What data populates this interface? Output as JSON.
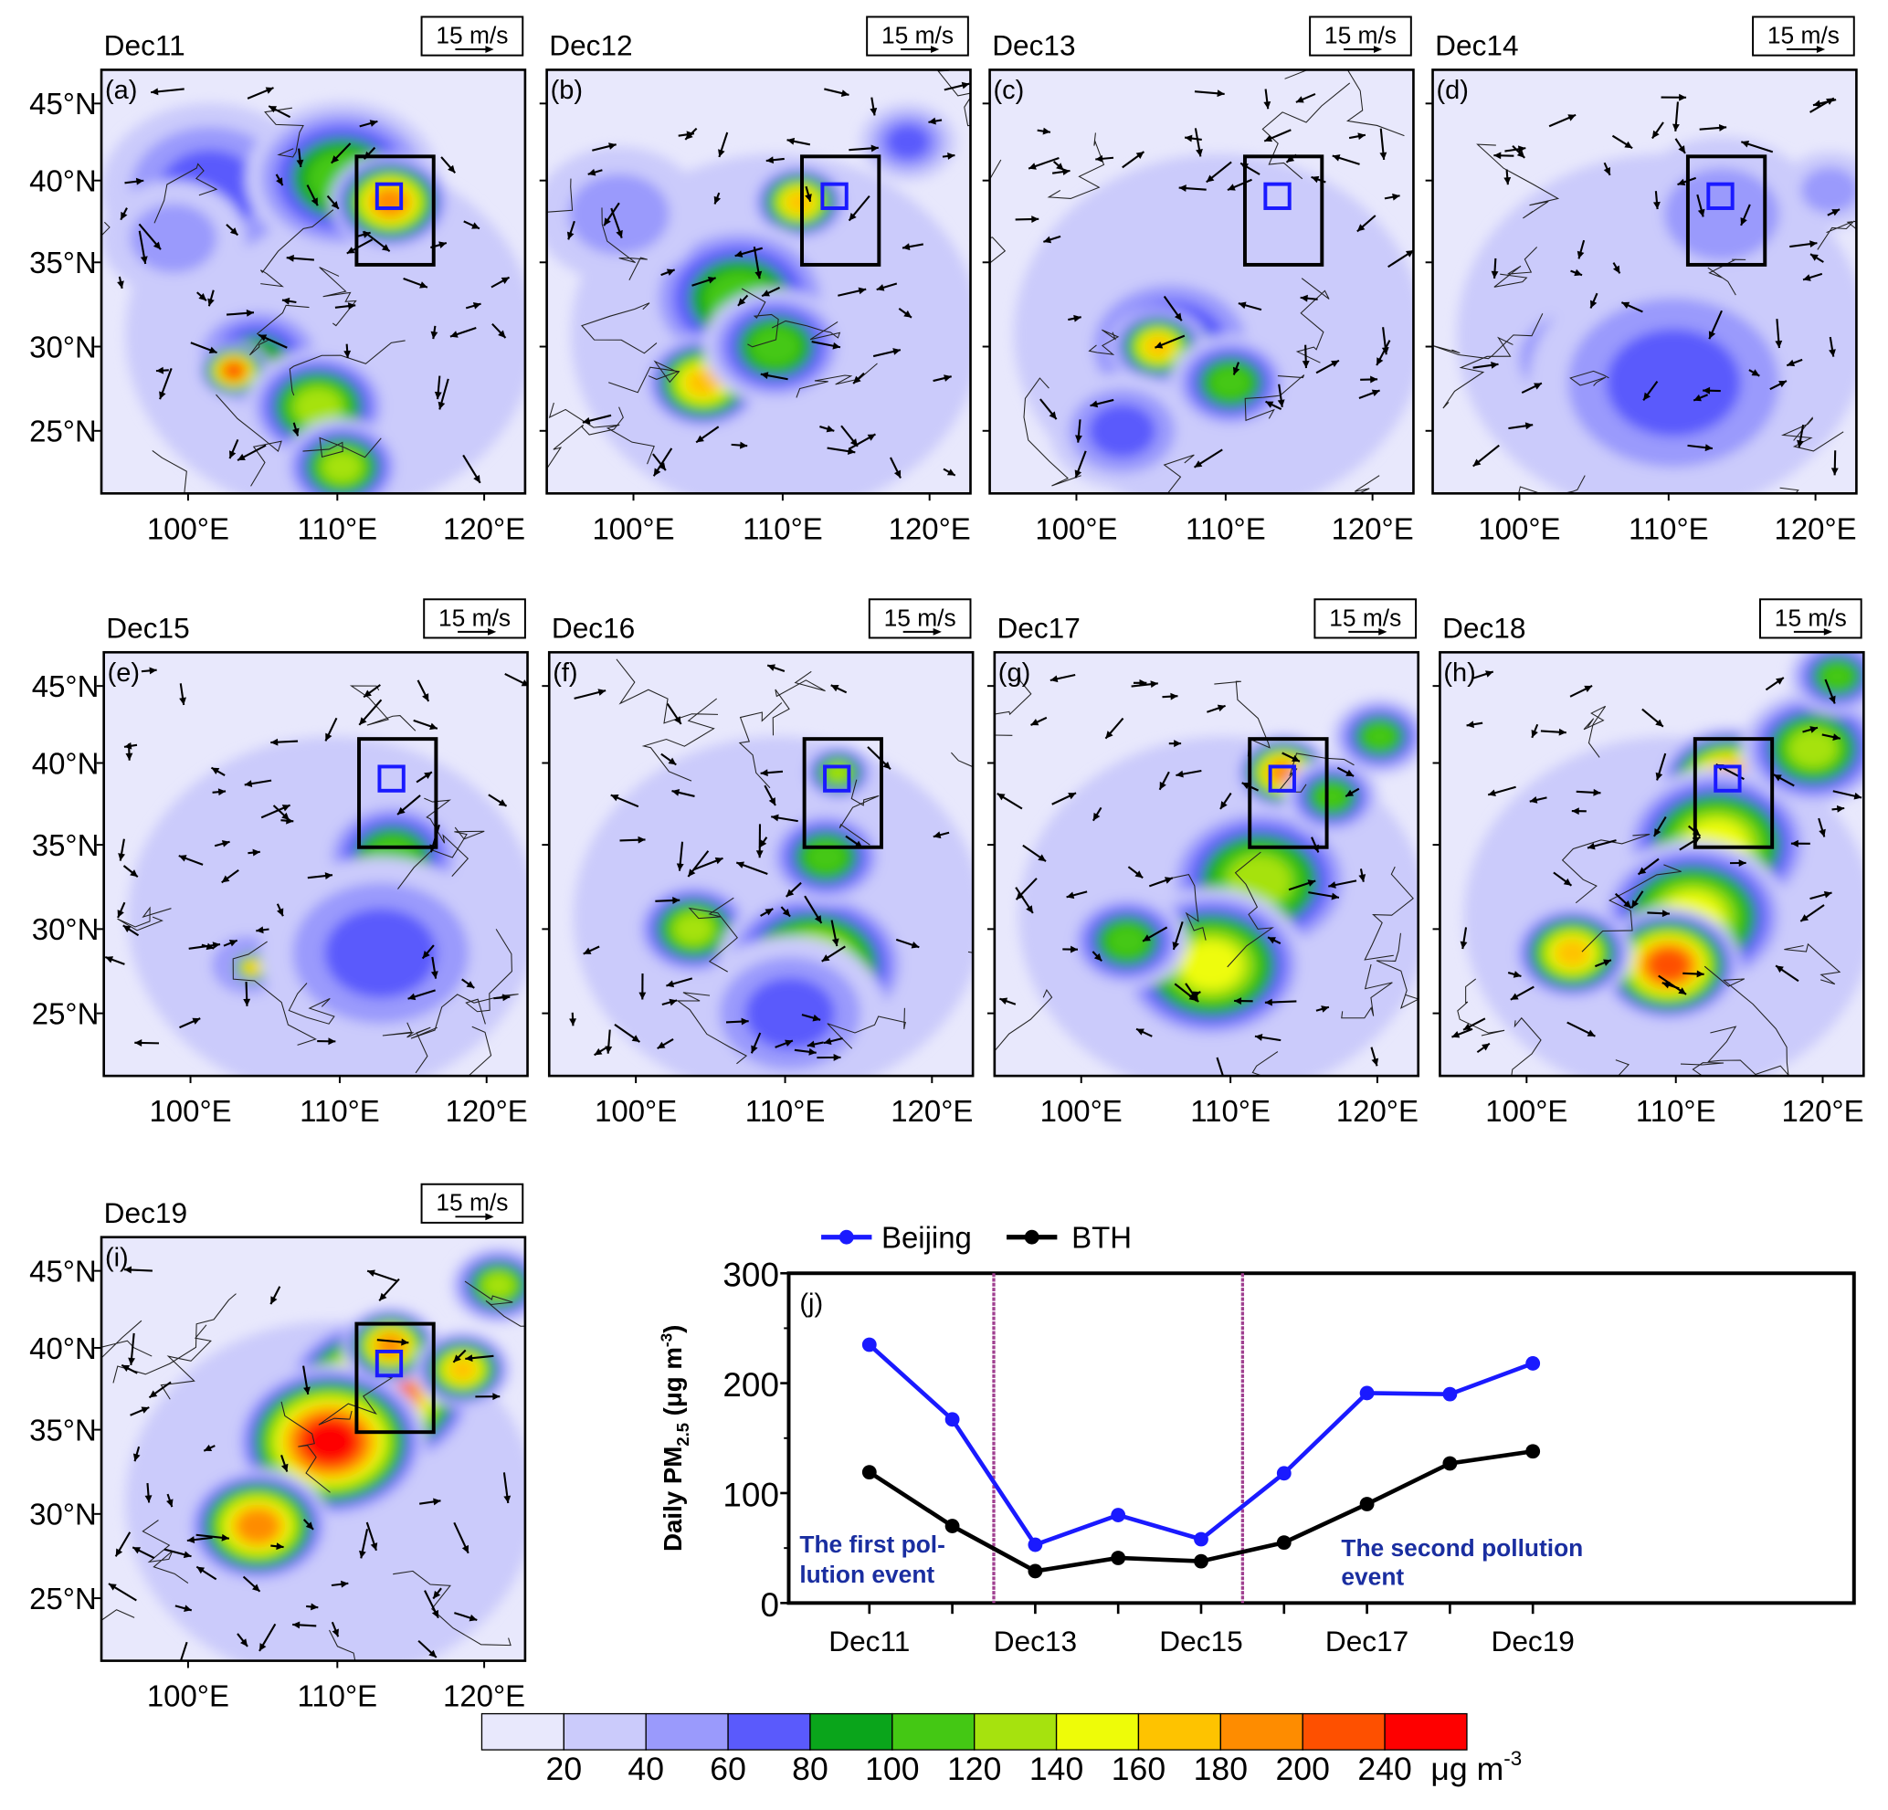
{
  "panels": [
    {
      "date": "Dec11",
      "letter": "(a)"
    },
    {
      "date": "Dec12",
      "letter": "(b)"
    },
    {
      "date": "Dec13",
      "letter": "(c)"
    },
    {
      "date": "Dec14",
      "letter": "(d)"
    },
    {
      "date": "Dec15",
      "letter": "(e)"
    },
    {
      "date": "Dec16",
      "letter": "(f)"
    },
    {
      "date": "Dec17",
      "letter": "(g)"
    },
    {
      "date": "Dec18",
      "letter": "(h)"
    },
    {
      "date": "Dec19",
      "letter": "(i)"
    }
  ],
  "map_axes": {
    "lat_labels": [
      "45°N",
      "40°N",
      "35°N",
      "30°N",
      "25°N"
    ],
    "lon_labels": [
      "100°E",
      "110°E",
      "120°E"
    ],
    "wind_scale": "15 m/s"
  },
  "colorbar": {
    "colors": [
      "#e8e8fc",
      "#cbcbfb",
      "#9a9afc",
      "#5a5afc",
      "#0aa51b",
      "#44c814",
      "#a6e20e",
      "#eefc08",
      "#fec300",
      "#fe8c00",
      "#fe5000",
      "#fe0000"
    ],
    "labels": [
      "20",
      "40",
      "60",
      "80",
      "100",
      "120",
      "140",
      "160",
      "180",
      "200",
      "240"
    ],
    "unit": "μg m",
    "unit_sup": "-3"
  },
  "chart_data": {
    "type": "line",
    "panel_label": "(j)",
    "categories": [
      "Dec11",
      "Dec12",
      "Dec13",
      "Dec14",
      "Dec15",
      "Dec16",
      "Dec17",
      "Dec18",
      "Dec19"
    ],
    "xtick_labels": [
      "Dec11",
      "Dec13",
      "Dec15",
      "Dec17",
      "Dec19"
    ],
    "ylabel": "Daily PM",
    "ylabel_sub": "2.5",
    "ylabel_unit": " (μg m",
    "ylabel_sup": "-3",
    "ylabel_end": ")",
    "ylim": [
      0,
      300
    ],
    "yticks": [
      "0",
      "100",
      "200",
      "300"
    ],
    "series": [
      {
        "name": "Beijing",
        "color": "#1a1aff",
        "values": [
          235,
          167,
          53,
          80,
          58,
          118,
          191,
          190,
          218
        ]
      },
      {
        "name": "BTH",
        "color": "#000000",
        "values": [
          119,
          70,
          29,
          41,
          38,
          55,
          90,
          127,
          138
        ]
      }
    ],
    "dividers": [
      12.5,
      15.5
    ],
    "annotations": {
      "first_line1": "The first pol-",
      "first_line2": "lution event",
      "second_line1": "The second pollution",
      "second_line2": "event"
    }
  }
}
